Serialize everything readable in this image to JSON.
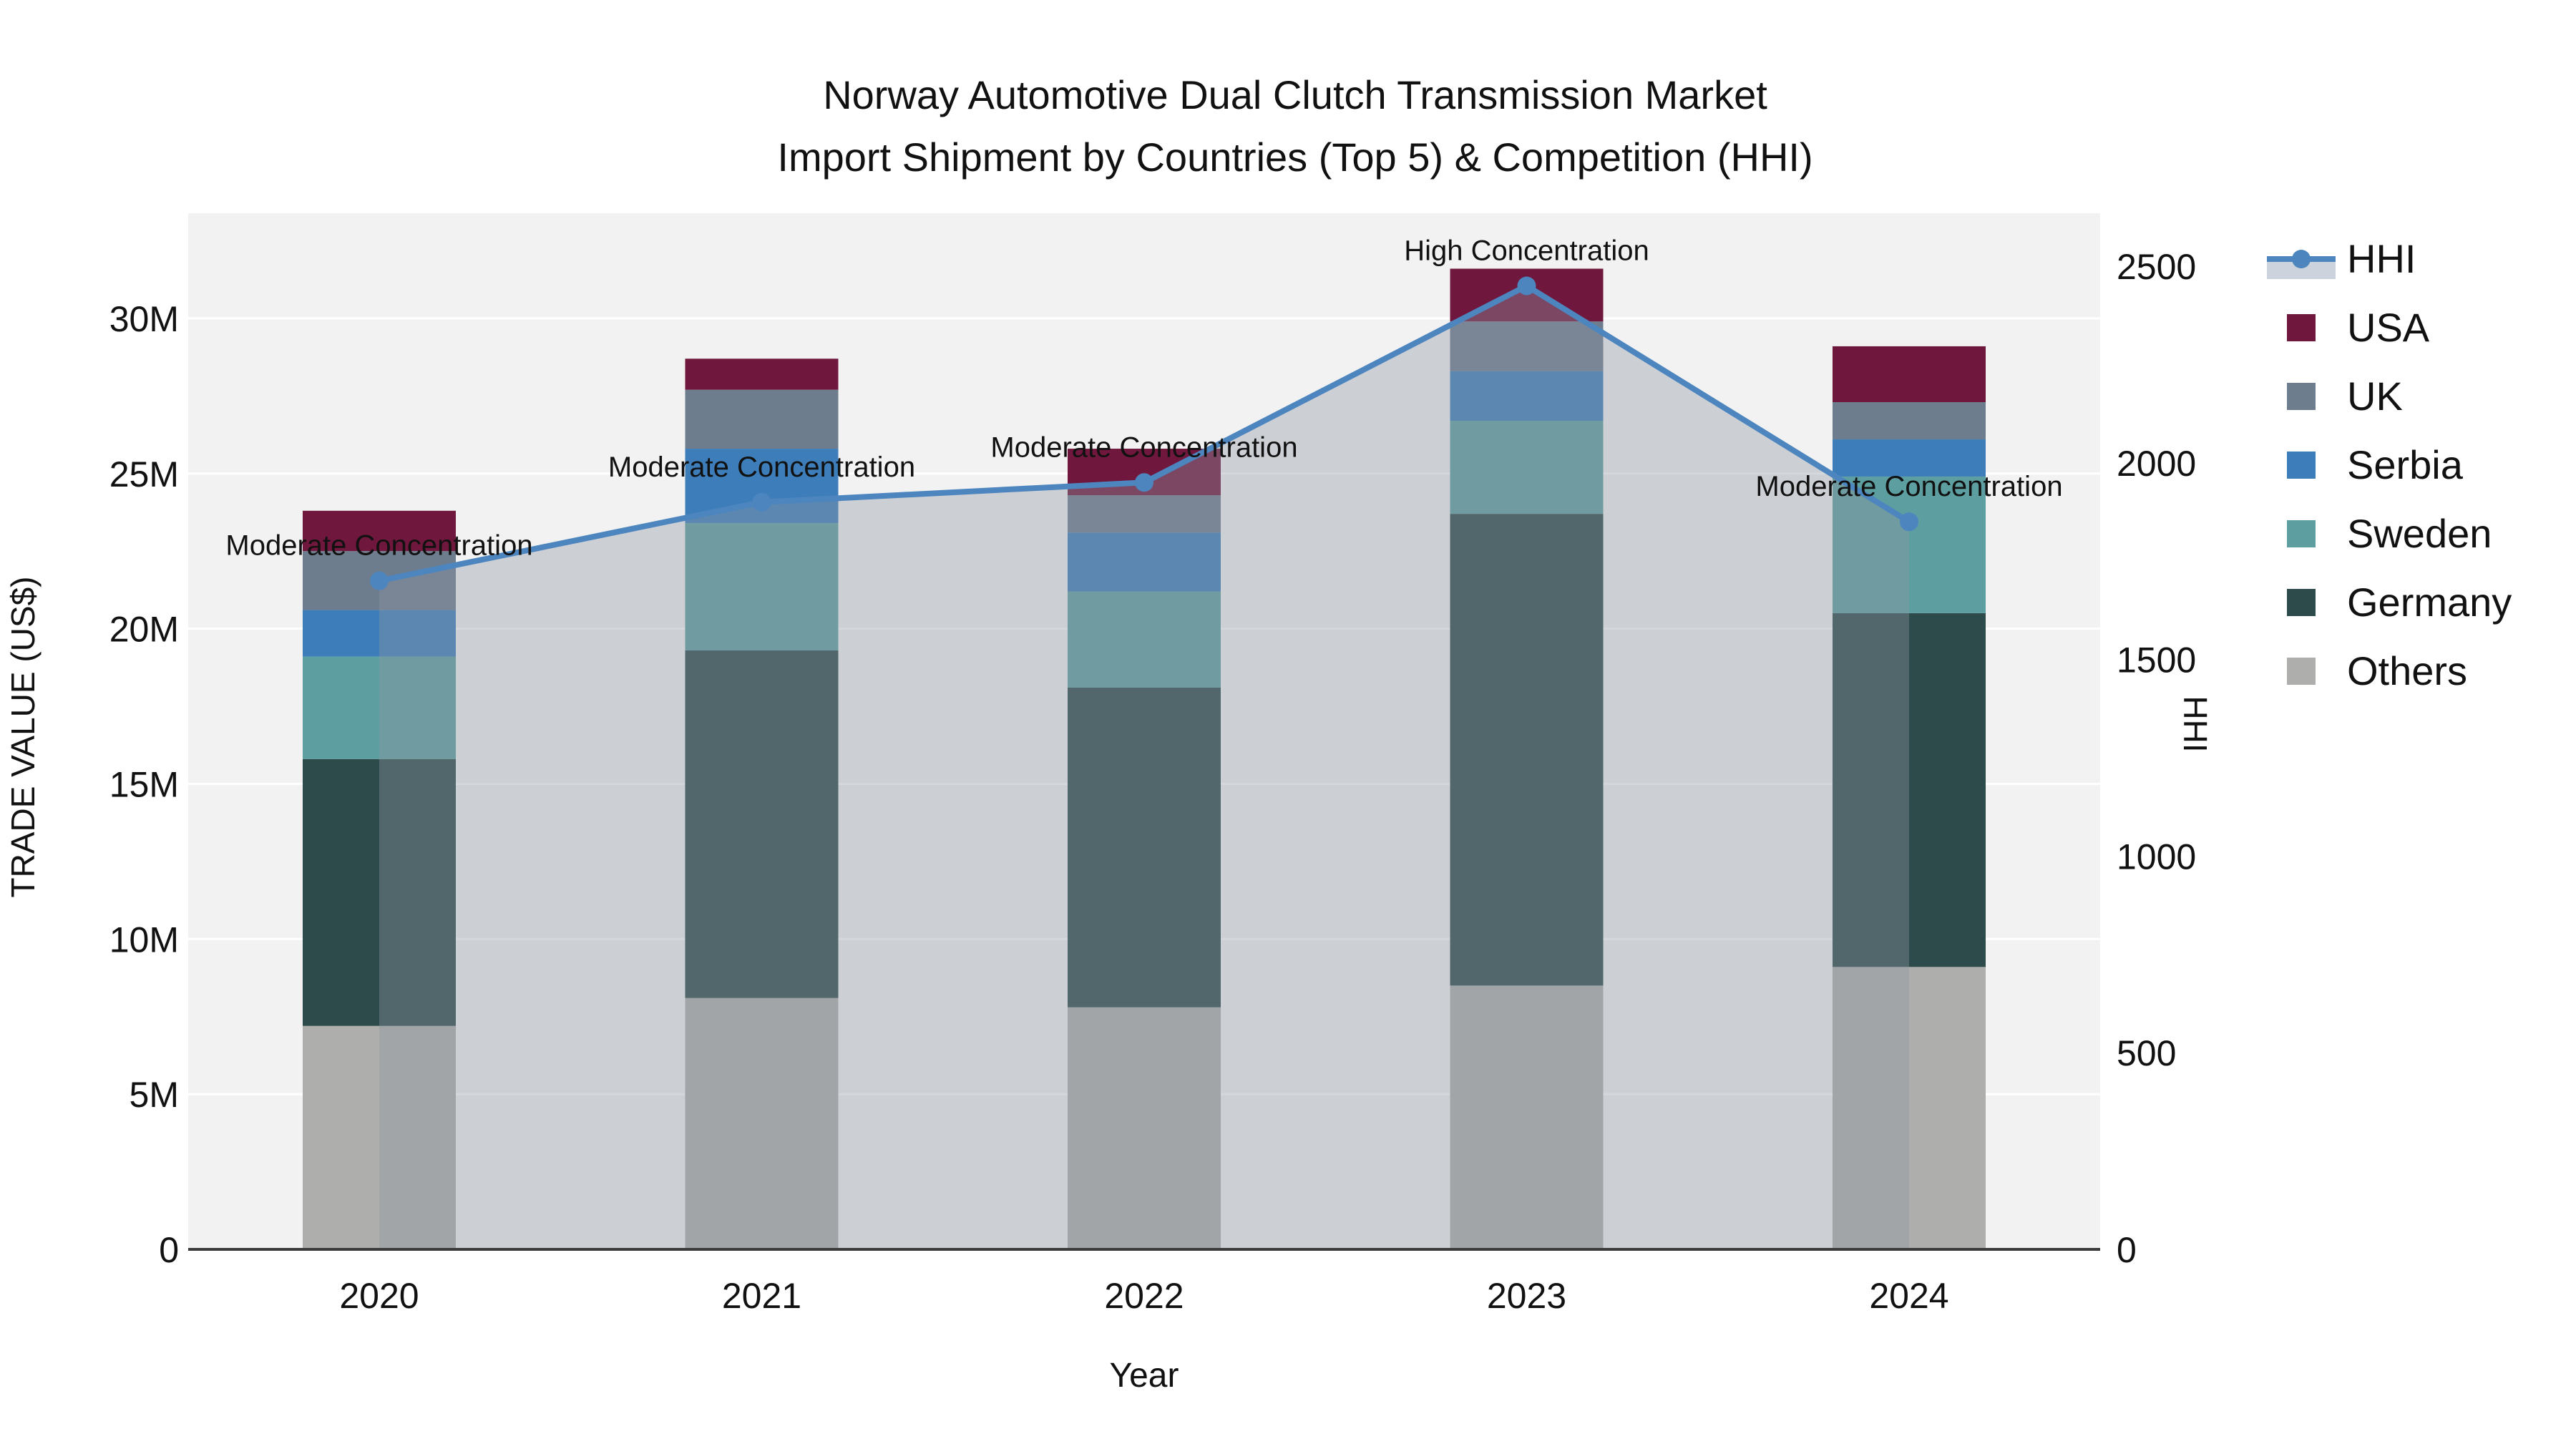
{
  "title": {
    "line1": "Norway Automotive Dual Clutch Transmission Market",
    "line2": "Import Shipment by Countries (Top 5) & Competition (HHI)"
  },
  "chart_data": {
    "type": "bar+line",
    "title": "Norway Automotive Dual Clutch Transmission Market Import Shipment by Countries (Top 5) & Competition (HHI)",
    "categories": [
      "2020",
      "2021",
      "2022",
      "2023",
      "2024"
    ],
    "stack_order_bottom_to_top": [
      "Others",
      "Germany",
      "Sweden",
      "Serbia",
      "UK",
      "USA"
    ],
    "series": [
      {
        "name": "Others",
        "color": "#aeaeac",
        "values_million_usd": [
          7.2,
          8.1,
          7.8,
          8.5,
          9.1
        ]
      },
      {
        "name": "Germany",
        "color": "#2d4b4a",
        "values_million_usd": [
          8.6,
          11.2,
          10.3,
          15.2,
          11.4
        ]
      },
      {
        "name": "Sweden",
        "color": "#5d9fa1",
        "values_million_usd": [
          3.3,
          4.1,
          3.1,
          3.0,
          4.4
        ]
      },
      {
        "name": "Serbia",
        "color": "#3d7eba",
        "values_million_usd": [
          1.5,
          2.4,
          1.9,
          1.6,
          1.2
        ]
      },
      {
        "name": "UK",
        "color": "#6e7d8d",
        "values_million_usd": [
          1.9,
          1.9,
          1.2,
          1.6,
          1.2
        ]
      },
      {
        "name": "USA",
        "color": "#70173d",
        "values_million_usd": [
          1.3,
          1.0,
          1.5,
          1.7,
          1.8
        ]
      }
    ],
    "bar_totals_million_usd": [
      23.8,
      28.7,
      25.8,
      31.6,
      29.1
    ],
    "line_series": {
      "name": "HHI",
      "color": "#4d85bf",
      "area_fill": "rgba(141,150,164,0.38)",
      "values": [
        1700,
        1900,
        1950,
        2450,
        1850
      ]
    },
    "annotations": [
      {
        "x": "2020",
        "text": "Moderate Concentration"
      },
      {
        "x": "2021",
        "text": "Moderate Concentration"
      },
      {
        "x": "2022",
        "text": "Moderate Concentration"
      },
      {
        "x": "2023",
        "text": "High Concentration"
      },
      {
        "x": "2024",
        "text": "Moderate Concentration"
      }
    ],
    "x_axis": {
      "label": "Year",
      "tick_labels": [
        "2020",
        "2021",
        "2022",
        "2023",
        "2024"
      ]
    },
    "y_left": {
      "label": "TRADE VALUE (US$)",
      "tick_labels": [
        "0",
        "5M",
        "10M",
        "15M",
        "20M",
        "25M",
        "30M"
      ],
      "tick_step_million": 5,
      "range_million": [
        0,
        33.4
      ]
    },
    "y_right": {
      "label": "HHI",
      "tick_labels": [
        "0",
        "500",
        "1000",
        "1500",
        "2000",
        "2500"
      ],
      "tick_step": 500,
      "range": [
        0,
        2635
      ]
    },
    "plot_background": "#f2f2f2",
    "gridline_color": "#ffffff",
    "axis_line_color": "#3b3b3b",
    "legend_position": "right"
  },
  "legend": {
    "items": [
      {
        "label": "HHI",
        "type": "line-marker",
        "color": "#4d85bf",
        "band_color": "#cdd3dc"
      },
      {
        "label": "USA",
        "type": "swatch",
        "color": "#70173d"
      },
      {
        "label": "UK",
        "type": "swatch",
        "color": "#6e7d8d"
      },
      {
        "label": "Serbia",
        "type": "swatch",
        "color": "#3d7eba"
      },
      {
        "label": "Sweden",
        "type": "swatch",
        "color": "#5d9fa1"
      },
      {
        "label": "Germany",
        "type": "swatch",
        "color": "#2d4b4a"
      },
      {
        "label": "Others",
        "type": "swatch",
        "color": "#aeaeac"
      }
    ]
  }
}
